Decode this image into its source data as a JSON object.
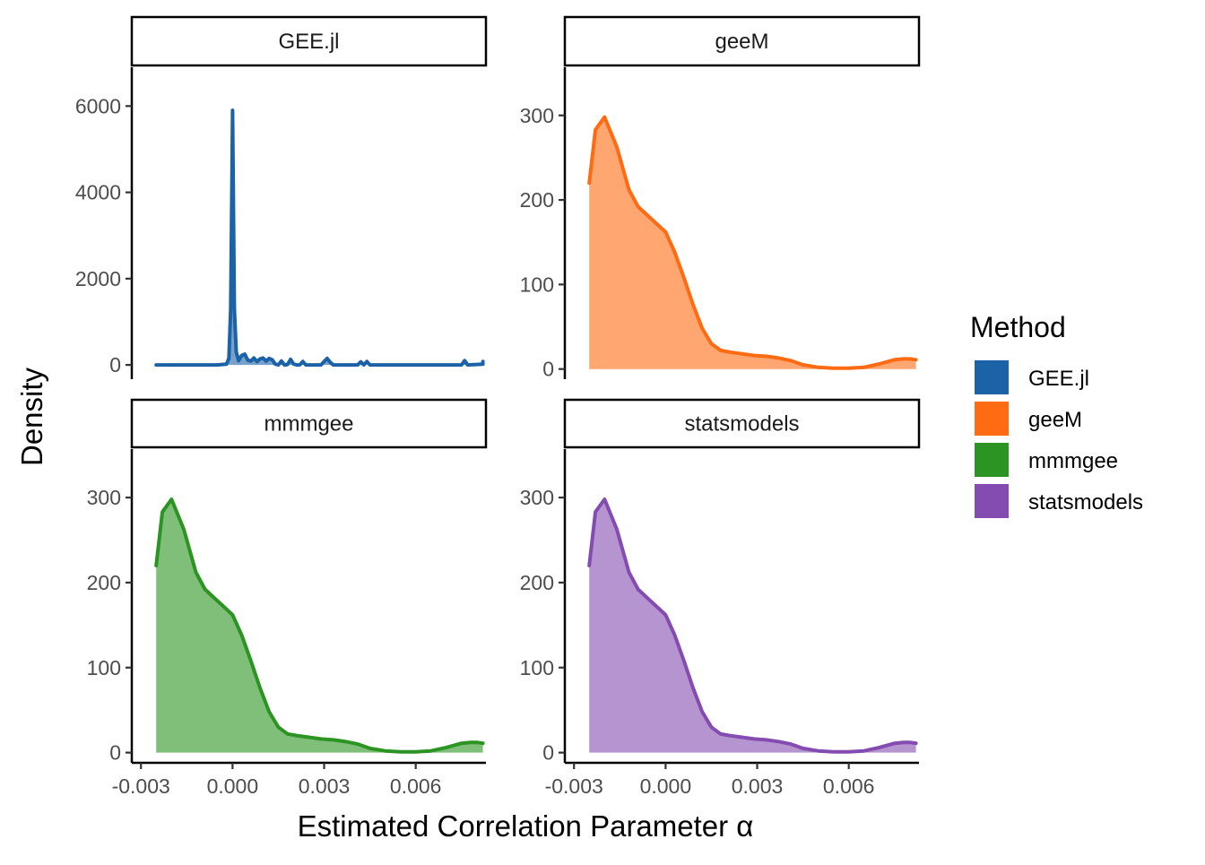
{
  "chart_data": {
    "type": "area",
    "kind": "faceted density plot",
    "xlabel": "Estimated Correlation Parameter α",
    "ylabel": "Density",
    "grid": false,
    "legend_position": "right",
    "legend": {
      "title": "Method",
      "entries": [
        {
          "label": "GEE.jl",
          "color": "#1c62a6"
        },
        {
          "label": "geeM",
          "color": "#ff6b12"
        },
        {
          "label": "mmmgee",
          "color": "#2b9422"
        },
        {
          "label": "statsmodels",
          "color": "#844cb0"
        }
      ]
    },
    "x_ticks": [
      {
        "value": -0.003,
        "label": "-0.003"
      },
      {
        "value": 0.0,
        "label": "0.000"
      },
      {
        "value": 0.003,
        "label": "0.003"
      },
      {
        "value": 0.006,
        "label": "0.006"
      }
    ],
    "xlim": [
      -0.0033,
      0.0083
    ],
    "panels": [
      {
        "name": "GEE.jl",
        "color": "#1c62a6",
        "ylim": [
          -330,
          6900
        ],
        "y_ticks": [
          {
            "value": 0,
            "label": "0"
          },
          {
            "value": 2000,
            "label": "2000"
          },
          {
            "value": 4000,
            "label": "4000"
          },
          {
            "value": 6000,
            "label": "6000"
          }
        ],
        "points": [
          [
            -0.0025,
            0
          ],
          [
            -0.0005,
            0
          ],
          [
            -0.0002,
            20
          ],
          [
            -0.00012,
            150
          ],
          [
            -6e-05,
            1300
          ],
          [
            -2e-05,
            4300
          ],
          [
            0.0,
            5900
          ],
          [
            2e-05,
            4300
          ],
          [
            6e-05,
            1300
          ],
          [
            0.00012,
            300
          ],
          [
            0.0002,
            100
          ],
          [
            0.0003,
            220
          ],
          [
            0.0004,
            250
          ],
          [
            0.0005,
            110
          ],
          [
            0.0006,
            90
          ],
          [
            0.0007,
            160
          ],
          [
            0.0008,
            80
          ],
          [
            0.0009,
            140
          ],
          [
            0.001,
            160
          ],
          [
            0.0011,
            90
          ],
          [
            0.0012,
            150
          ],
          [
            0.0013,
            120
          ],
          [
            0.0014,
            20
          ],
          [
            0.0015,
            0
          ],
          [
            0.0016,
            90
          ],
          [
            0.0017,
            0
          ],
          [
            0.0018,
            10
          ],
          [
            0.0019,
            130
          ],
          [
            0.002,
            20
          ],
          [
            0.0021,
            0
          ],
          [
            0.0022,
            0
          ],
          [
            0.0023,
            80
          ],
          [
            0.0024,
            0
          ],
          [
            0.0026,
            0
          ],
          [
            0.0029,
            0
          ],
          [
            0.003,
            80
          ],
          [
            0.0031,
            150
          ],
          [
            0.0032,
            60
          ],
          [
            0.0033,
            0
          ],
          [
            0.0035,
            0
          ],
          [
            0.0041,
            0
          ],
          [
            0.0042,
            70
          ],
          [
            0.0043,
            0
          ],
          [
            0.0044,
            80
          ],
          [
            0.0045,
            0
          ],
          [
            0.0075,
            0
          ],
          [
            0.0076,
            100
          ],
          [
            0.0077,
            0
          ],
          [
            0.0082,
            20
          ],
          [
            0.0082,
            80
          ]
        ]
      },
      {
        "name": "geeM",
        "color": "#ff6b12",
        "ylim": [
          -12,
          357
        ],
        "y_ticks": [
          {
            "value": 0,
            "label": "0"
          },
          {
            "value": 100,
            "label": "100"
          },
          {
            "value": 200,
            "label": "200"
          },
          {
            "value": 300,
            "label": "300"
          }
        ],
        "points": [
          [
            -0.0025,
            220
          ],
          [
            -0.0023,
            283
          ],
          [
            -0.002,
            298
          ],
          [
            -0.0016,
            263
          ],
          [
            -0.0012,
            212
          ],
          [
            -0.0009,
            192
          ],
          [
            -0.0006,
            182
          ],
          [
            -0.0003,
            172
          ],
          [
            0.0,
            162
          ],
          [
            0.0003,
            138
          ],
          [
            0.0006,
            108
          ],
          [
            0.0009,
            76
          ],
          [
            0.0012,
            48
          ],
          [
            0.0015,
            30
          ],
          [
            0.0018,
            22
          ],
          [
            0.0021,
            20
          ],
          [
            0.0025,
            18
          ],
          [
            0.0029,
            16
          ],
          [
            0.0033,
            15
          ],
          [
            0.0037,
            13
          ],
          [
            0.0041,
            10
          ],
          [
            0.0045,
            5
          ],
          [
            0.005,
            2
          ],
          [
            0.0055,
            1
          ],
          [
            0.006,
            1
          ],
          [
            0.0065,
            2
          ],
          [
            0.007,
            6
          ],
          [
            0.0075,
            11
          ],
          [
            0.0078,
            12
          ],
          [
            0.008,
            12
          ],
          [
            0.0082,
            11
          ]
        ]
      },
      {
        "name": "mmmgee",
        "color": "#2b9422",
        "ylim": [
          -12,
          357
        ],
        "y_ticks": [
          {
            "value": 0,
            "label": "0"
          },
          {
            "value": 100,
            "label": "100"
          },
          {
            "value": 200,
            "label": "200"
          },
          {
            "value": 300,
            "label": "300"
          }
        ],
        "points": [
          [
            -0.0025,
            220
          ],
          [
            -0.0023,
            283
          ],
          [
            -0.002,
            298
          ],
          [
            -0.0016,
            263
          ],
          [
            -0.0012,
            212
          ],
          [
            -0.0009,
            192
          ],
          [
            -0.0006,
            182
          ],
          [
            -0.0003,
            172
          ],
          [
            0.0,
            162
          ],
          [
            0.0003,
            138
          ],
          [
            0.0006,
            108
          ],
          [
            0.0009,
            76
          ],
          [
            0.0012,
            48
          ],
          [
            0.0015,
            30
          ],
          [
            0.0018,
            22
          ],
          [
            0.0021,
            20
          ],
          [
            0.0025,
            18
          ],
          [
            0.0029,
            16
          ],
          [
            0.0033,
            15
          ],
          [
            0.0037,
            13
          ],
          [
            0.0041,
            10
          ],
          [
            0.0045,
            5
          ],
          [
            0.005,
            2
          ],
          [
            0.0055,
            1
          ],
          [
            0.006,
            1
          ],
          [
            0.0065,
            2
          ],
          [
            0.007,
            6
          ],
          [
            0.0075,
            11
          ],
          [
            0.0078,
            12
          ],
          [
            0.008,
            12
          ],
          [
            0.0082,
            11
          ]
        ]
      },
      {
        "name": "statsmodels",
        "color": "#844cb0",
        "ylim": [
          -12,
          357
        ],
        "y_ticks": [
          {
            "value": 0,
            "label": "0"
          },
          {
            "value": 100,
            "label": "100"
          },
          {
            "value": 200,
            "label": "200"
          },
          {
            "value": 300,
            "label": "300"
          }
        ],
        "points": [
          [
            -0.0025,
            220
          ],
          [
            -0.0023,
            283
          ],
          [
            -0.002,
            298
          ],
          [
            -0.0016,
            263
          ],
          [
            -0.0012,
            212
          ],
          [
            -0.0009,
            192
          ],
          [
            -0.0006,
            182
          ],
          [
            -0.0003,
            172
          ],
          [
            0.0,
            162
          ],
          [
            0.0003,
            138
          ],
          [
            0.0006,
            108
          ],
          [
            0.0009,
            76
          ],
          [
            0.0012,
            48
          ],
          [
            0.0015,
            30
          ],
          [
            0.0018,
            22
          ],
          [
            0.0021,
            20
          ],
          [
            0.0025,
            18
          ],
          [
            0.0029,
            16
          ],
          [
            0.0033,
            15
          ],
          [
            0.0037,
            13
          ],
          [
            0.0041,
            10
          ],
          [
            0.0045,
            5
          ],
          [
            0.005,
            2
          ],
          [
            0.0055,
            1
          ],
          [
            0.006,
            1
          ],
          [
            0.0065,
            2
          ],
          [
            0.007,
            6
          ],
          [
            0.0075,
            11
          ],
          [
            0.0078,
            12
          ],
          [
            0.008,
            12
          ],
          [
            0.0082,
            11
          ]
        ]
      }
    ]
  }
}
